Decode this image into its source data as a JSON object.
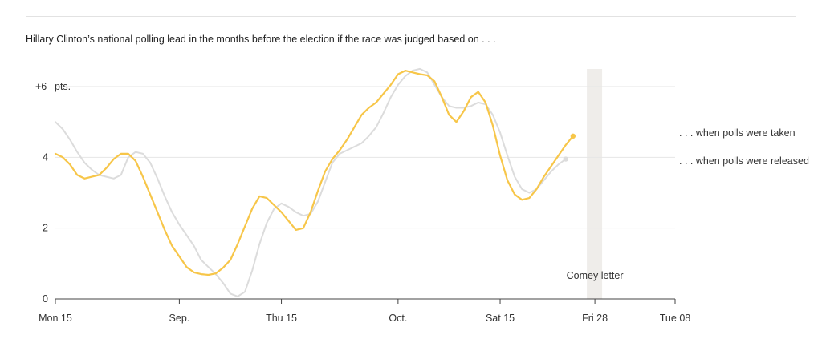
{
  "chart_data": {
    "type": "line",
    "title": "Hillary Clinton’s national polling lead in the months before the election if the race was judged based on . . .",
    "ylim": [
      0,
      6.5
    ],
    "xlim": [
      "2016-08-15",
      "2016-11-08"
    ],
    "y_ticks": [
      {
        "value": 6,
        "label": "+6",
        "unit": "pts."
      },
      {
        "value": 4,
        "label": "4"
      },
      {
        "value": 2,
        "label": "2"
      },
      {
        "value": 0,
        "label": "0"
      }
    ],
    "x_ticks": [
      {
        "date": "2016-08-15",
        "label": "Mon 15"
      },
      {
        "date": "2016-09-01",
        "label": "Sep."
      },
      {
        "date": "2016-09-15",
        "label": "Thu 15"
      },
      {
        "date": "2016-10-01",
        "label": "Oct."
      },
      {
        "date": "2016-10-15",
        "label": "Sat 15"
      },
      {
        "date": "2016-10-28",
        "label": "Fri 28"
      },
      {
        "date": "2016-11-08",
        "label": "Tue 08"
      }
    ],
    "grid": "horizontal",
    "legend": "right, at line ends",
    "annotation": {
      "date": "2016-10-28",
      "label": "Comey letter"
    },
    "series": [
      {
        "name": ". . . when polls were taken",
        "color": "#f7c649",
        "points": [
          [
            "2016-08-15",
            4.1
          ],
          [
            "2016-08-16",
            4.0
          ],
          [
            "2016-08-17",
            3.8
          ],
          [
            "2016-08-18",
            3.5
          ],
          [
            "2016-08-19",
            3.4
          ],
          [
            "2016-08-20",
            3.45
          ],
          [
            "2016-08-21",
            3.5
          ],
          [
            "2016-08-22",
            3.7
          ],
          [
            "2016-08-23",
            3.95
          ],
          [
            "2016-08-24",
            4.1
          ],
          [
            "2016-08-25",
            4.1
          ],
          [
            "2016-08-26",
            3.9
          ],
          [
            "2016-08-27",
            3.45
          ],
          [
            "2016-08-28",
            2.95
          ],
          [
            "2016-08-29",
            2.45
          ],
          [
            "2016-08-30",
            1.95
          ],
          [
            "2016-08-31",
            1.5
          ],
          [
            "2016-09-01",
            1.2
          ],
          [
            "2016-09-02",
            0.9
          ],
          [
            "2016-09-03",
            0.75
          ],
          [
            "2016-09-04",
            0.7
          ],
          [
            "2016-09-05",
            0.68
          ],
          [
            "2016-09-06",
            0.72
          ],
          [
            "2016-09-07",
            0.88
          ],
          [
            "2016-09-08",
            1.1
          ],
          [
            "2016-09-09",
            1.55
          ],
          [
            "2016-09-10",
            2.05
          ],
          [
            "2016-09-11",
            2.55
          ],
          [
            "2016-09-12",
            2.9
          ],
          [
            "2016-09-13",
            2.85
          ],
          [
            "2016-09-14",
            2.65
          ],
          [
            "2016-09-15",
            2.45
          ],
          [
            "2016-09-16",
            2.2
          ],
          [
            "2016-09-17",
            1.95
          ],
          [
            "2016-09-18",
            2.0
          ],
          [
            "2016-09-19",
            2.45
          ],
          [
            "2016-09-20",
            3.05
          ],
          [
            "2016-09-21",
            3.6
          ],
          [
            "2016-09-22",
            3.95
          ],
          [
            "2016-09-23",
            4.2
          ],
          [
            "2016-09-24",
            4.5
          ],
          [
            "2016-09-25",
            4.85
          ],
          [
            "2016-09-26",
            5.2
          ],
          [
            "2016-09-27",
            5.4
          ],
          [
            "2016-09-28",
            5.55
          ],
          [
            "2016-09-29",
            5.8
          ],
          [
            "2016-09-30",
            6.05
          ],
          [
            "2016-10-01",
            6.35
          ],
          [
            "2016-10-02",
            6.45
          ],
          [
            "2016-10-03",
            6.4
          ],
          [
            "2016-10-04",
            6.35
          ],
          [
            "2016-10-05",
            6.32
          ],
          [
            "2016-10-06",
            6.15
          ],
          [
            "2016-10-07",
            5.7
          ],
          [
            "2016-10-08",
            5.2
          ],
          [
            "2016-10-09",
            5.0
          ],
          [
            "2016-10-10",
            5.3
          ],
          [
            "2016-10-11",
            5.7
          ],
          [
            "2016-10-12",
            5.85
          ],
          [
            "2016-10-13",
            5.55
          ],
          [
            "2016-10-14",
            4.9
          ],
          [
            "2016-10-15",
            4.05
          ],
          [
            "2016-10-16",
            3.35
          ],
          [
            "2016-10-17",
            2.95
          ],
          [
            "2016-10-18",
            2.8
          ],
          [
            "2016-10-19",
            2.85
          ],
          [
            "2016-10-20",
            3.1
          ],
          [
            "2016-10-21",
            3.45
          ],
          [
            "2016-10-22",
            3.75
          ],
          [
            "2016-10-23",
            4.05
          ],
          [
            "2016-10-24",
            4.35
          ],
          [
            "2016-10-25",
            4.6
          ]
        ]
      },
      {
        "name": ". . . when polls were released",
        "color": "#dcdcdc",
        "points": [
          [
            "2016-08-15",
            5.0
          ],
          [
            "2016-08-16",
            4.8
          ],
          [
            "2016-08-17",
            4.5
          ],
          [
            "2016-08-18",
            4.15
          ],
          [
            "2016-08-19",
            3.85
          ],
          [
            "2016-08-20",
            3.65
          ],
          [
            "2016-08-21",
            3.5
          ],
          [
            "2016-08-22",
            3.45
          ],
          [
            "2016-08-23",
            3.4
          ],
          [
            "2016-08-24",
            3.5
          ],
          [
            "2016-08-25",
            4.0
          ],
          [
            "2016-08-26",
            4.15
          ],
          [
            "2016-08-27",
            4.1
          ],
          [
            "2016-08-28",
            3.85
          ],
          [
            "2016-08-29",
            3.4
          ],
          [
            "2016-08-30",
            2.9
          ],
          [
            "2016-08-31",
            2.45
          ],
          [
            "2016-09-01",
            2.1
          ],
          [
            "2016-09-02",
            1.8
          ],
          [
            "2016-09-03",
            1.5
          ],
          [
            "2016-09-04",
            1.1
          ],
          [
            "2016-09-05",
            0.9
          ],
          [
            "2016-09-06",
            0.7
          ],
          [
            "2016-09-07",
            0.45
          ],
          [
            "2016-09-08",
            0.15
          ],
          [
            "2016-09-09",
            0.07
          ],
          [
            "2016-09-10",
            0.2
          ],
          [
            "2016-09-11",
            0.8
          ],
          [
            "2016-09-12",
            1.55
          ],
          [
            "2016-09-13",
            2.15
          ],
          [
            "2016-09-14",
            2.55
          ],
          [
            "2016-09-15",
            2.7
          ],
          [
            "2016-09-16",
            2.6
          ],
          [
            "2016-09-17",
            2.45
          ],
          [
            "2016-09-18",
            2.35
          ],
          [
            "2016-09-19",
            2.4
          ],
          [
            "2016-09-20",
            2.75
          ],
          [
            "2016-09-21",
            3.3
          ],
          [
            "2016-09-22",
            3.85
          ],
          [
            "2016-09-23",
            4.1
          ],
          [
            "2016-09-24",
            4.2
          ],
          [
            "2016-09-25",
            4.3
          ],
          [
            "2016-09-26",
            4.4
          ],
          [
            "2016-09-27",
            4.6
          ],
          [
            "2016-09-28",
            4.85
          ],
          [
            "2016-09-29",
            5.25
          ],
          [
            "2016-09-30",
            5.7
          ],
          [
            "2016-10-01",
            6.05
          ],
          [
            "2016-10-02",
            6.3
          ],
          [
            "2016-10-03",
            6.45
          ],
          [
            "2016-10-04",
            6.5
          ],
          [
            "2016-10-05",
            6.4
          ],
          [
            "2016-10-06",
            6.05
          ],
          [
            "2016-10-07",
            5.7
          ],
          [
            "2016-10-08",
            5.45
          ],
          [
            "2016-10-09",
            5.4
          ],
          [
            "2016-10-10",
            5.4
          ],
          [
            "2016-10-11",
            5.45
          ],
          [
            "2016-10-12",
            5.55
          ],
          [
            "2016-10-13",
            5.5
          ],
          [
            "2016-10-14",
            5.2
          ],
          [
            "2016-10-15",
            4.7
          ],
          [
            "2016-10-16",
            4.05
          ],
          [
            "2016-10-17",
            3.45
          ],
          [
            "2016-10-18",
            3.1
          ],
          [
            "2016-10-19",
            3.0
          ],
          [
            "2016-10-20",
            3.1
          ],
          [
            "2016-10-21",
            3.35
          ],
          [
            "2016-10-22",
            3.6
          ],
          [
            "2016-10-23",
            3.8
          ],
          [
            "2016-10-24",
            3.95
          ]
        ]
      }
    ]
  }
}
